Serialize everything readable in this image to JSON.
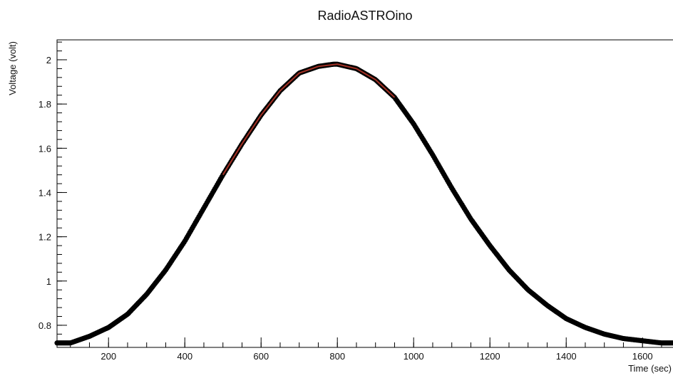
{
  "chart_data": {
    "type": "scatter",
    "title": "RadioASTROino",
    "xlabel": "Time (sec)",
    "ylabel": "Voltage (volt)",
    "xlim": [
      65,
      1680
    ],
    "ylim": [
      0.7,
      2.09
    ],
    "x_ticks": [
      200,
      400,
      600,
      800,
      1000,
      1200,
      1400,
      1600
    ],
    "x_tick_labels": [
      "200",
      "400",
      "600",
      "800",
      "1000",
      "1200",
      "1400",
      "1600"
    ],
    "y_ticks": [
      0.8,
      1.0,
      1.2,
      1.4,
      1.6,
      1.8,
      2.0
    ],
    "y_tick_labels": [
      "0.8",
      "1",
      "1.2",
      "1.4",
      "1.6",
      "1.8",
      "2"
    ],
    "grid": false,
    "series": [
      {
        "color": "#000000",
        "marker": "circle",
        "x": [
          65,
          100,
          150,
          200,
          250,
          300,
          350,
          400,
          450,
          500,
          550,
          600,
          650,
          700,
          750,
          790,
          800,
          850,
          900,
          950,
          1000,
          1050,
          1100,
          1150,
          1200,
          1250,
          1300,
          1350,
          1400,
          1450,
          1500,
          1550,
          1600,
          1650,
          1680
        ],
        "y": [
          0.72,
          0.72,
          0.75,
          0.79,
          0.85,
          0.94,
          1.05,
          1.18,
          1.33,
          1.48,
          1.62,
          1.75,
          1.86,
          1.94,
          1.97,
          1.98,
          1.98,
          1.96,
          1.91,
          1.83,
          1.71,
          1.57,
          1.42,
          1.28,
          1.16,
          1.05,
          0.96,
          0.89,
          0.83,
          0.79,
          0.76,
          0.74,
          0.73,
          0.72,
          0.72
        ]
      },
      {
        "color": "#c0392b",
        "marker": "line",
        "x": [
          500,
          550,
          600,
          650,
          700,
          750,
          800,
          850,
          900,
          950
        ],
        "y": [
          1.48,
          1.62,
          1.75,
          1.86,
          1.94,
          1.97,
          1.98,
          1.96,
          1.91,
          1.83
        ]
      }
    ]
  }
}
